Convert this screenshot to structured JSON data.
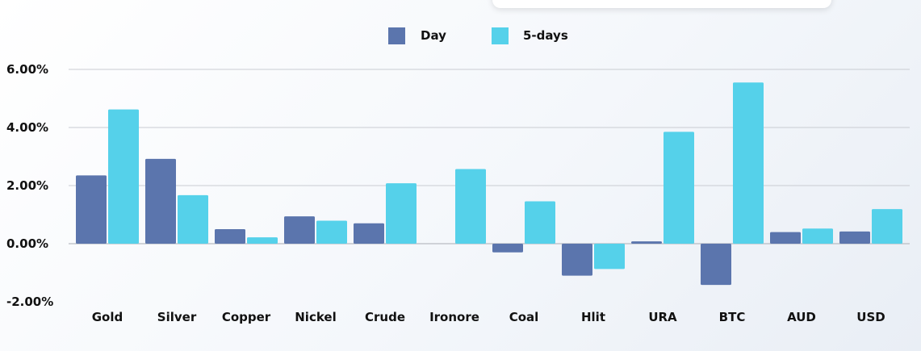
{
  "chart_data": {
    "type": "bar",
    "categories": [
      "Gold",
      "Silver",
      "Copper",
      "Nickel",
      "Crude",
      "Ironore",
      "Coal",
      "Hlit",
      "URA",
      "BTC",
      "AUD",
      "USD"
    ],
    "series": [
      {
        "name": "Day",
        "color": "#5b75ad",
        "values": [
          2.35,
          2.92,
          0.5,
          0.94,
          0.7,
          0.0,
          -0.3,
          -1.1,
          0.08,
          -1.42,
          0.4,
          0.42
        ]
      },
      {
        "name": "5-days",
        "color": "#55d1ea",
        "values": [
          4.62,
          1.67,
          0.22,
          0.79,
          2.08,
          2.57,
          1.46,
          -0.87,
          3.85,
          5.55,
          0.52,
          1.19
        ]
      }
    ],
    "y_ticks": [
      {
        "value": 6,
        "label": "6.00%"
      },
      {
        "value": 4,
        "label": "4.00%"
      },
      {
        "value": 2,
        "label": "2.00%"
      },
      {
        "value": 0,
        "label": "0.00%"
      },
      {
        "value": -2,
        "label": "-2.00%"
      }
    ],
    "ylim": [
      -2,
      6
    ],
    "grid": true,
    "legend_position": "top-center"
  }
}
